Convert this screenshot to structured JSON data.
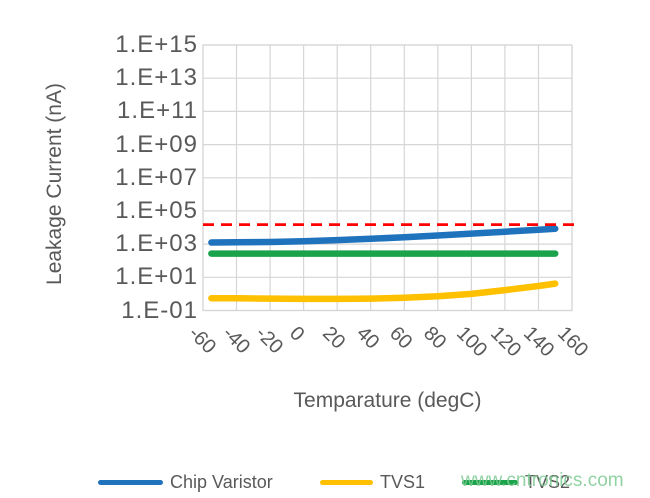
{
  "watermark": "www.cntronics.com",
  "colors": {
    "axis_text": "#595959",
    "gridline": "#D6D6D6",
    "background": "#FFFFFF",
    "threshold": "#FF0000"
  },
  "chart_data": {
    "type": "line",
    "title": "",
    "xlabel": "Temparature (degC)",
    "ylabel": "Leakage Current (nA)",
    "x_scale": "linear",
    "y_scale": "log",
    "x_range": [
      -60,
      160
    ],
    "y_log_range": [
      -1,
      15
    ],
    "grid": true,
    "legend_position": "bottom",
    "x_tick_values": [
      -60,
      -40,
      -20,
      0,
      20,
      40,
      60,
      80,
      100,
      120,
      140,
      160
    ],
    "x_tick_labels": [
      "-60",
      "-40",
      "-20",
      "0",
      "20",
      "40",
      "60",
      "80",
      "100",
      "120",
      "140",
      "160"
    ],
    "y_ticks": [
      {
        "label": "1.E+15",
        "exp": 15
      },
      {
        "label": "1.E+13",
        "exp": 13
      },
      {
        "label": "1.E+11",
        "exp": 11
      },
      {
        "label": "1.E+09",
        "exp": 9
      },
      {
        "label": "1.E+07",
        "exp": 7
      },
      {
        "label": "1.E+05",
        "exp": 5
      },
      {
        "label": "1.E+03",
        "exp": 3
      },
      {
        "label": "1.E+01",
        "exp": 1
      },
      {
        "label": "1.E-01",
        "exp": -1
      }
    ],
    "x": [
      -55,
      -40,
      -20,
      0,
      20,
      40,
      60,
      80,
      100,
      120,
      140,
      150
    ],
    "series": [
      {
        "name": "Chip Varistor",
        "color": "#1F72BC",
        "values": [
          1250,
          1300,
          1350,
          1500,
          1750,
          2100,
          2600,
          3300,
          4300,
          5600,
          7300,
          8500
        ]
      },
      {
        "name": "TVS1",
        "color": "#FFC000",
        "values": [
          0.55,
          0.54,
          0.52,
          0.5,
          0.5,
          0.52,
          0.58,
          0.72,
          1.0,
          1.7,
          3.0,
          4.2
        ]
      },
      {
        "name": "TVS2",
        "color": "#1AA34A",
        "values": [
          270,
          270,
          270,
          270,
          270,
          270,
          270,
          270,
          270,
          270,
          270,
          270
        ]
      }
    ],
    "threshold_line": {
      "value": 15000,
      "color": "#FF0000",
      "style": "dashed"
    }
  }
}
